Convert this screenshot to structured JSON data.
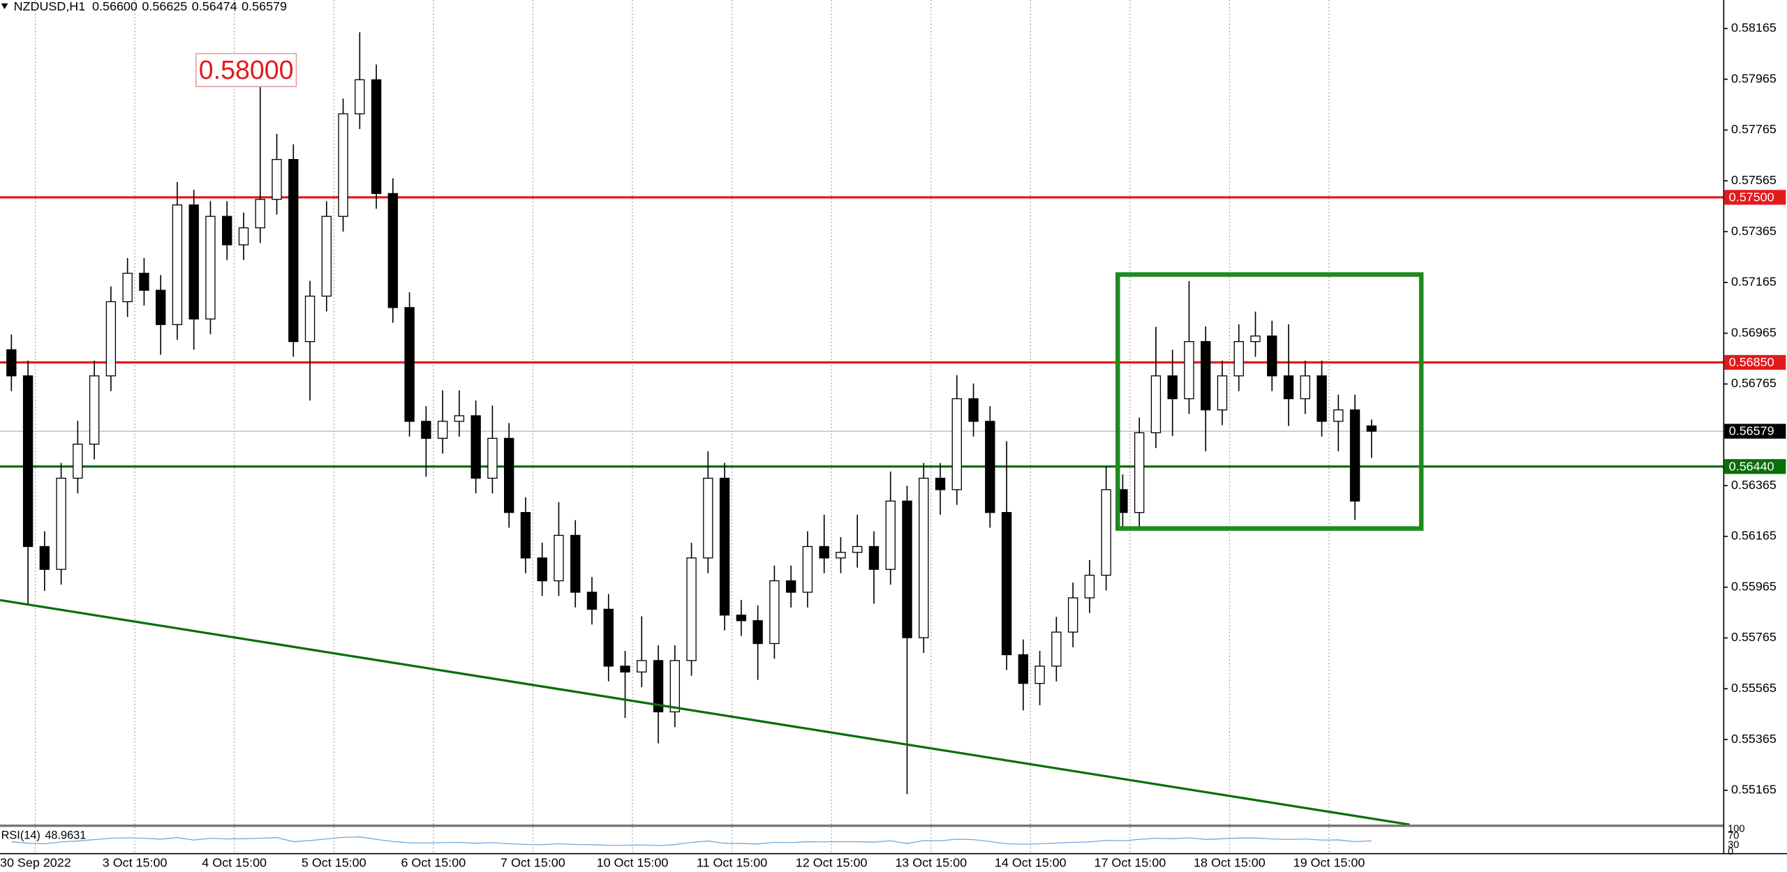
{
  "chart_data": {
    "type": "candlestick",
    "header": {
      "symbol": "NZDUSD,H1",
      "ohlc": [
        "0.56600",
        "0.56625",
        "0.56474",
        "0.56579"
      ]
    },
    "annotation": "0.58000",
    "open": [
      0.569,
      0.56797,
      0.56125,
      0.56035,
      0.56394,
      0.56528,
      0.56797,
      0.57089,
      0.57201,
      0.57134,
      0.56999,
      0.5747,
      0.57021,
      0.57425,
      0.57313,
      0.5738,
      0.57492,
      0.57649,
      0.56932,
      0.57111,
      0.57425,
      0.57829,
      0.57963,
      0.57515,
      0.57066,
      0.56618,
      0.56551,
      0.56618,
      0.5664,
      0.56394,
      0.56551,
      0.56259,
      0.5608,
      0.5599,
      0.56169,
      0.55945,
      0.55878,
      0.55654,
      0.55631,
      0.55676,
      0.55474,
      0.55676,
      0.5608,
      0.56394,
      0.55855,
      0.55833,
      0.55743,
      0.5599,
      0.55945,
      0.56125,
      0.5608,
      0.56102,
      0.56125,
      0.56035,
      0.56304,
      0.55766,
      0.56394,
      0.56349,
      0.56707,
      0.56618,
      0.56259,
      0.55699,
      0.55586,
      0.55654,
      0.55788,
      0.55923,
      0.56012,
      0.56349,
      0.56259,
      0.56573,
      0.56797,
      0.56707,
      0.56932,
      0.56663,
      0.56797,
      0.56932,
      0.56954,
      0.56797,
      0.56707,
      0.56797,
      0.56618,
      0.56663,
      0.566
    ],
    "high": [
      0.5696,
      0.56857,
      0.56185,
      0.56454,
      0.5662,
      0.56857,
      0.57149,
      0.57261,
      0.57261,
      0.57194,
      0.5756,
      0.5753,
      0.57485,
      0.57485,
      0.5744,
      0.58,
      0.5775,
      0.57709,
      0.57171,
      0.57485,
      0.57889,
      0.5815,
      0.58023,
      0.57575,
      0.57126,
      0.56678,
      0.5674,
      0.5674,
      0.567,
      0.5668,
      0.56611,
      0.56319,
      0.5614,
      0.563,
      0.56229,
      0.56005,
      0.55938,
      0.55714,
      0.5585,
      0.55736,
      0.55736,
      0.5614,
      0.565,
      0.56454,
      0.55915,
      0.55893,
      0.5605,
      0.5605,
      0.56185,
      0.5625,
      0.56162,
      0.5625,
      0.56185,
      0.5642,
      0.56364,
      0.56454,
      0.56454,
      0.568,
      0.56767,
      0.56678,
      0.5654,
      0.55759,
      0.55714,
      0.55848,
      0.55983,
      0.56072,
      0.5644,
      0.56409,
      0.56633,
      0.5699,
      0.569,
      0.5717,
      0.56992,
      0.56857,
      0.57,
      0.5705,
      0.57014,
      0.57,
      0.56857,
      0.56857,
      0.56723,
      0.56723,
      0.56625
    ],
    "low": [
      0.56737,
      0.559,
      0.5595,
      0.55975,
      0.56334,
      0.56468,
      0.56737,
      0.57029,
      0.57074,
      0.5688,
      0.56939,
      0.569,
      0.56961,
      0.57253,
      0.57253,
      0.5732,
      0.57432,
      0.56872,
      0.567,
      0.57051,
      0.57365,
      0.57769,
      0.57455,
      0.57006,
      0.56558,
      0.564,
      0.56491,
      0.56558,
      0.56334,
      0.56334,
      0.56199,
      0.5602,
      0.5593,
      0.5593,
      0.55885,
      0.55818,
      0.55594,
      0.5545,
      0.55571,
      0.5535,
      0.55414,
      0.55616,
      0.5602,
      0.55795,
      0.55773,
      0.556,
      0.55683,
      0.55885,
      0.55885,
      0.5602,
      0.5602,
      0.56042,
      0.559,
      0.55975,
      0.5515,
      0.55706,
      0.5625,
      0.56289,
      0.56558,
      0.56199,
      0.55639,
      0.5548,
      0.555,
      0.55594,
      0.55728,
      0.55863,
      0.55952,
      0.56199,
      0.56199,
      0.56513,
      0.5656,
      0.56647,
      0.565,
      0.56603,
      0.56737,
      0.56872,
      0.56737,
      0.566,
      0.56647,
      0.56558,
      0.565,
      0.5623,
      0.56474
    ],
    "close": [
      0.56797,
      0.56125,
      0.56035,
      0.56394,
      0.56528,
      0.56797,
      0.57089,
      0.57201,
      0.57134,
      0.56999,
      0.5747,
      0.57021,
      0.57425,
      0.57313,
      0.5738,
      0.57492,
      0.57649,
      0.56932,
      0.57111,
      0.57425,
      0.57829,
      0.57963,
      0.57515,
      0.57066,
      0.56618,
      0.56551,
      0.56618,
      0.5664,
      0.56394,
      0.56551,
      0.56259,
      0.5608,
      0.5599,
      0.56169,
      0.55945,
      0.55878,
      0.55654,
      0.55631,
      0.55676,
      0.55474,
      0.55676,
      0.5608,
      0.56394,
      0.55855,
      0.55833,
      0.55743,
      0.5599,
      0.55945,
      0.56125,
      0.5608,
      0.56102,
      0.56125,
      0.56035,
      0.56304,
      0.55766,
      0.56394,
      0.56349,
      0.56707,
      0.56618,
      0.56259,
      0.55699,
      0.55586,
      0.55654,
      0.55788,
      0.55923,
      0.56012,
      0.56349,
      0.56259,
      0.56573,
      0.56797,
      0.56707,
      0.56932,
      0.56663,
      0.56797,
      0.56932,
      0.56954,
      0.56797,
      0.56707,
      0.56797,
      0.56618,
      0.56663,
      0.56304,
      0.56579
    ],
    "xlim": [
      -0.687,
      103.2
    ],
    "xticks": [
      {
        "value": 1.44,
        "label": "30 Sep 2022"
      },
      {
        "value": 7.44,
        "label": "3 Oct 15:00"
      },
      {
        "value": 13.44,
        "label": "4 Oct 15:00"
      },
      {
        "value": 19.44,
        "label": "5 Oct 15:00"
      },
      {
        "value": 25.44,
        "label": "6 Oct 15:00"
      },
      {
        "value": 31.44,
        "label": "7 Oct 15:00"
      },
      {
        "value": 37.44,
        "label": "10 Oct 15:00"
      },
      {
        "value": 43.44,
        "label": "11 Oct 15:00"
      },
      {
        "value": 49.44,
        "label": "12 Oct 15:00"
      },
      {
        "value": 55.44,
        "label": "13 Oct 15:00"
      },
      {
        "value": 61.44,
        "label": "14 Oct 15:00"
      },
      {
        "value": 67.44,
        "label": "17 Oct 15:00"
      },
      {
        "value": 73.44,
        "label": "18 Oct 15:00"
      },
      {
        "value": 79.44,
        "label": "19 Oct 15:00"
      }
    ],
    "ylim": [
      0.5503,
      0.58277
    ],
    "yticks": [
      0.58165,
      0.57965,
      0.57765,
      0.57565,
      0.57365,
      0.57165,
      0.56965,
      0.56765,
      0.56365,
      0.56165,
      0.55965,
      0.55765,
      0.55565,
      0.55365,
      0.55165
    ],
    "grid": true,
    "levels": [
      {
        "value": 0.575,
        "label": "0.57500",
        "color": "#e31a1c"
      },
      {
        "value": 0.5685,
        "label": "0.56850",
        "color": "#e31a1c"
      },
      {
        "value": 0.5644,
        "label": "0.56440",
        "color": "#0a6e0a"
      },
      {
        "value": 0.56579,
        "label": "0.56579",
        "color": "#000000"
      }
    ],
    "box": {
      "x": [
        66.7,
        85.0
      ],
      "y": [
        0.57196,
        0.56196
      ],
      "color": "#1f8a1f"
    },
    "trendline": {
      "x": [
        -0.687,
        84.3
      ],
      "y": [
        0.55914,
        0.5503
      ],
      "color": "#0a6e0a"
    },
    "rsi": {
      "name": "RSI(14)",
      "last": 48.9631,
      "ylim": [
        0,
        100
      ],
      "yticks": [
        100,
        70,
        30,
        0
      ],
      "color": "#6fa8dc",
      "values": [
        45,
        38,
        36,
        44,
        48,
        54,
        60,
        62,
        60,
        56,
        63,
        52,
        60,
        57,
        58,
        60,
        63,
        45,
        50,
        57,
        64,
        66,
        55,
        46,
        40,
        39,
        41,
        42,
        38,
        41,
        36,
        33,
        32,
        36,
        33,
        32,
        29,
        29,
        31,
        28,
        32,
        42,
        48,
        38,
        37,
        35,
        42,
        41,
        45,
        44,
        45,
        45,
        43,
        49,
        37,
        50,
        49,
        56,
        54,
        46,
        36,
        34,
        36,
        39,
        42,
        44,
        51,
        49,
        55,
        60,
        58,
        62,
        55,
        58,
        61,
        61,
        57,
        55,
        57,
        52,
        53,
        45,
        48.9631
      ]
    }
  }
}
